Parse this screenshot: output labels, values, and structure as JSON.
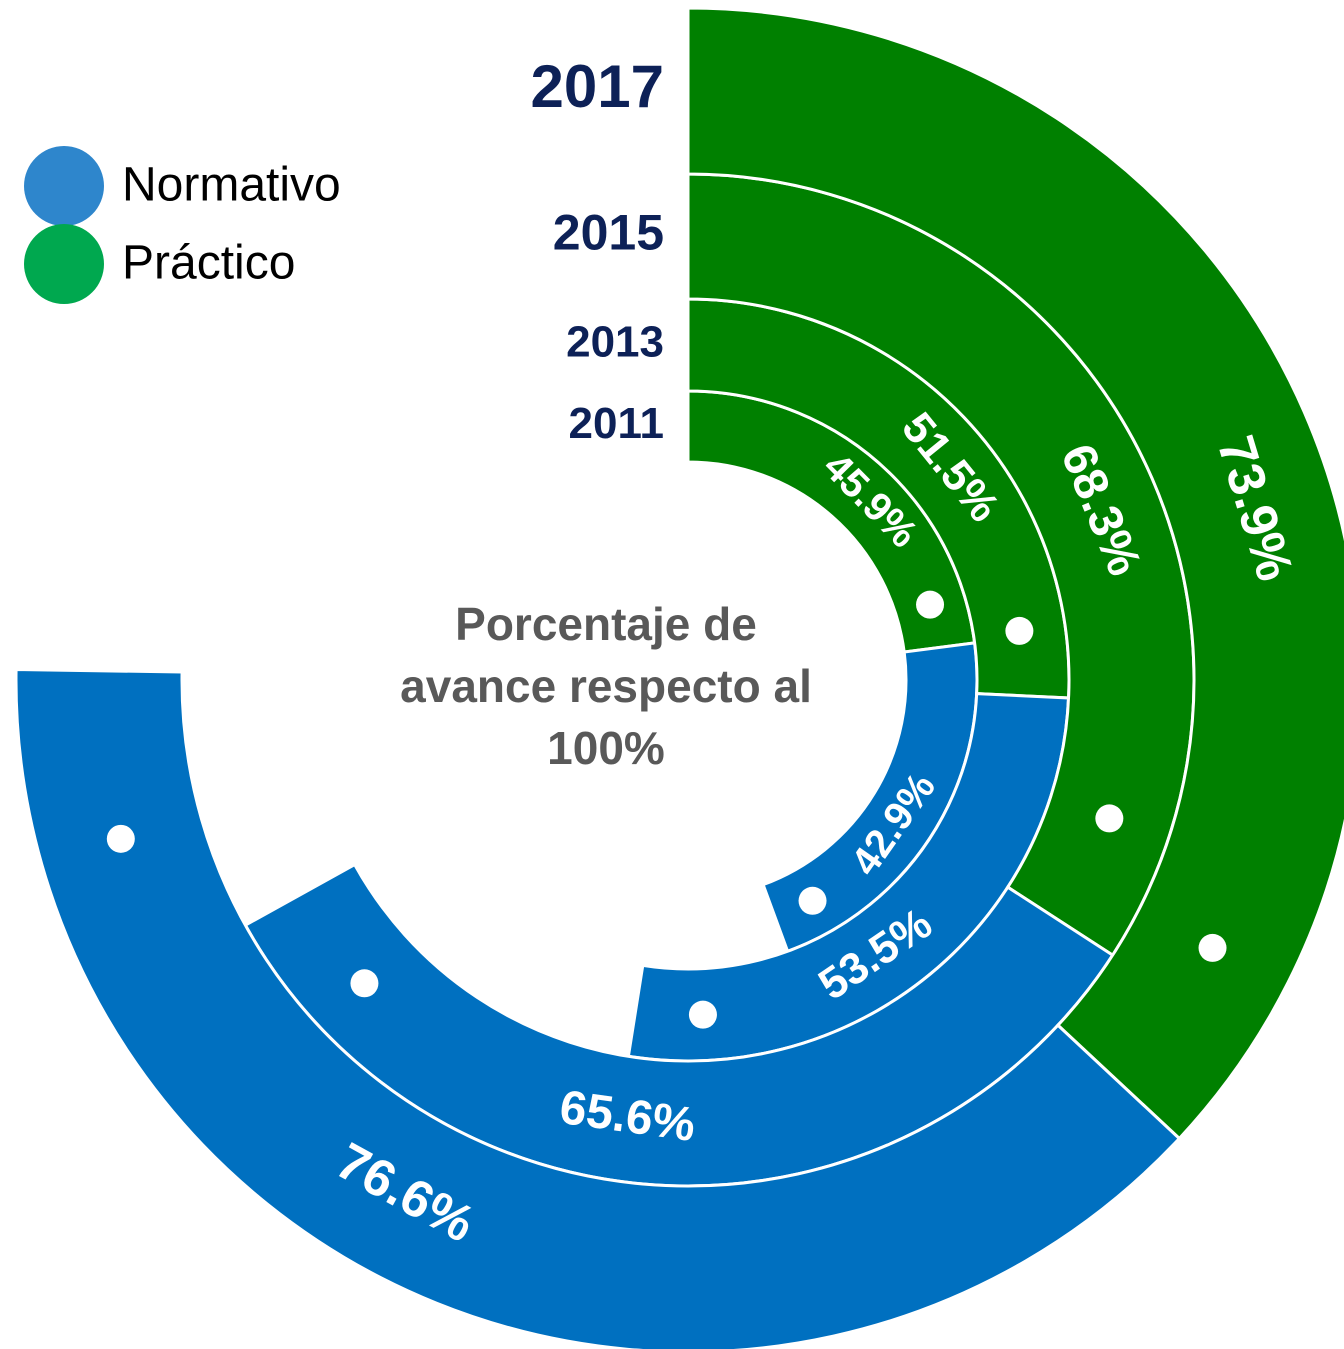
{
  "chart_data": {
    "type": "radial_bar",
    "categories": [
      "2011",
      "2013",
      "2015",
      "2017"
    ],
    "series": [
      {
        "name": "Práctico",
        "color": "#008000",
        "legend_color": "#00A84F",
        "values": [
          45.9,
          51.5,
          68.3,
          73.9
        ],
        "value_labels": [
          "45.9%",
          "51.5%",
          "68.3%",
          "73.9%"
        ]
      },
      {
        "name": "Normativo",
        "color": "#0070C0",
        "legend_color": "#2E86CC",
        "values": [
          42.9,
          53.5,
          65.6,
          76.6
        ],
        "value_labels": [
          "42.9%",
          "53.5%",
          "65.6%",
          "76.6%"
        ]
      }
    ],
    "center_label": [
      "Porcentaje de",
      "avance respecto al",
      "100%"
    ]
  }
}
